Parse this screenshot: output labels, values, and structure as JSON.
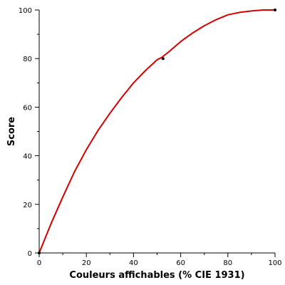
{
  "chart_data": {
    "type": "line",
    "title": "",
    "xlabel": "Couleurs affichables (% CIE 1931)",
    "ylabel": "Score",
    "xlim": [
      0,
      100
    ],
    "ylim": [
      0,
      100
    ],
    "x_major_ticks": [
      0,
      20,
      40,
      60,
      80,
      100
    ],
    "y_major_ticks": [
      0,
      20,
      40,
      60,
      80,
      100
    ],
    "x_minor_step": 10,
    "y_minor_step": 10,
    "grid": false,
    "legend": "none",
    "series": [
      {
        "color": "#d40000",
        "x": [
          0,
          5,
          10,
          15,
          20,
          25,
          30,
          35,
          40,
          45,
          50,
          52,
          55,
          60,
          65,
          70,
          75,
          80,
          85,
          90,
          95,
          97,
          100
        ],
        "y": [
          0,
          12,
          23,
          33.5,
          42.5,
          50.5,
          57.5,
          64,
          70,
          75,
          79.5,
          80.5,
          82.8,
          87,
          90.5,
          93.5,
          96,
          98,
          99,
          99.6,
          100,
          100,
          100
        ]
      }
    ],
    "points": [
      {
        "x": 0,
        "y": 0
      },
      {
        "x": 52.5,
        "y": 80
      },
      {
        "x": 100,
        "y": 100
      }
    ]
  }
}
